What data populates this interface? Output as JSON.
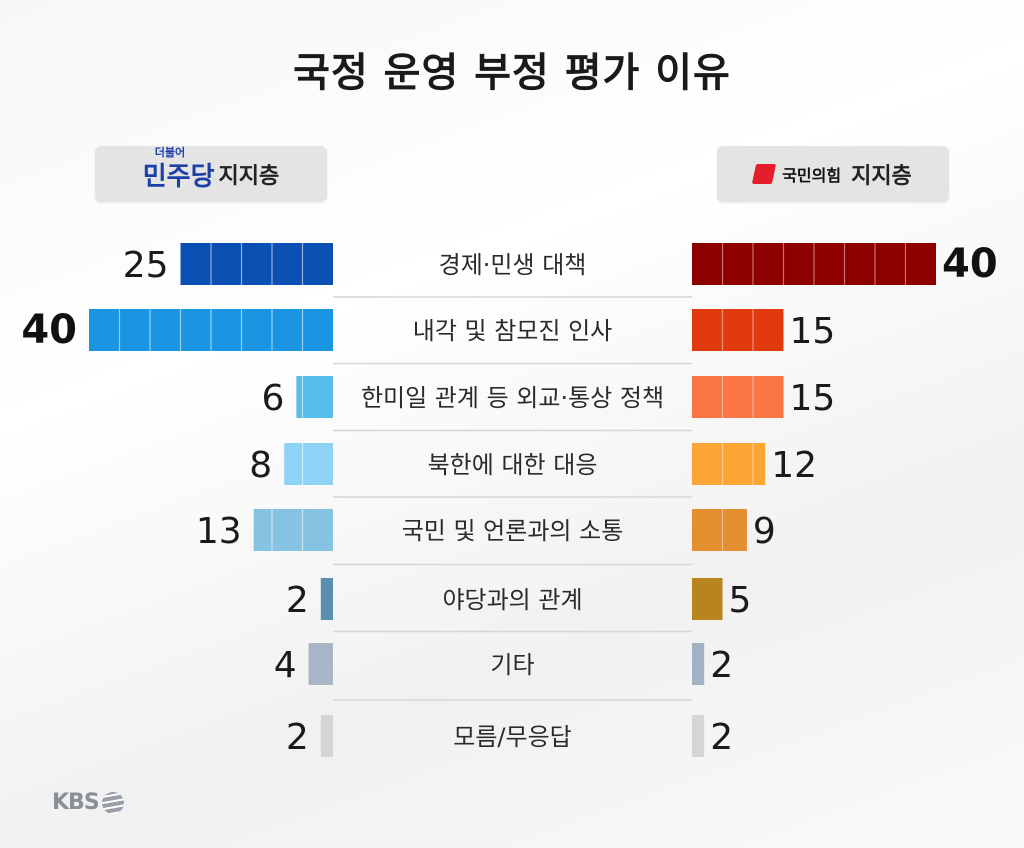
{
  "title": "국정 운영 부정 평가 이유",
  "left_party": {
    "logo_small": "더불어",
    "logo": "민주당",
    "label": "지지층"
  },
  "right_party": {
    "logo": "국민의힘",
    "label": "지지층"
  },
  "broadcaster": "KBS",
  "chart_data": {
    "type": "bar",
    "orientation": "horizontal-butterfly",
    "categories": [
      "경제·민생 대책",
      "내각 및 참모진 인사",
      "한미일 관계 등 외교·통상 정책",
      "북한에 대한 대응",
      "국민 및 언론과의 소통",
      "야당과의 관계",
      "기타",
      "모름/무응답"
    ],
    "series": [
      {
        "name": "민주당 지지층",
        "values": [
          25,
          40,
          6,
          8,
          13,
          2,
          4,
          2
        ],
        "colors": [
          "#0b4fb3",
          "#1a95e2",
          "#56bde8",
          "#8ed2f6",
          "#86c3e3",
          "#5b8fb0",
          "#a8b5c6",
          "#d5d5d5"
        ]
      },
      {
        "name": "국민의힘 지지층",
        "values": [
          40,
          15,
          15,
          12,
          9,
          5,
          2,
          2
        ],
        "colors": [
          "#8e0000",
          "#e03a0e",
          "#fb7443",
          "#fda534",
          "#e48f2f",
          "#b8841e",
          "#a3b1c4",
          "#d5d5d5"
        ]
      }
    ]
  }
}
